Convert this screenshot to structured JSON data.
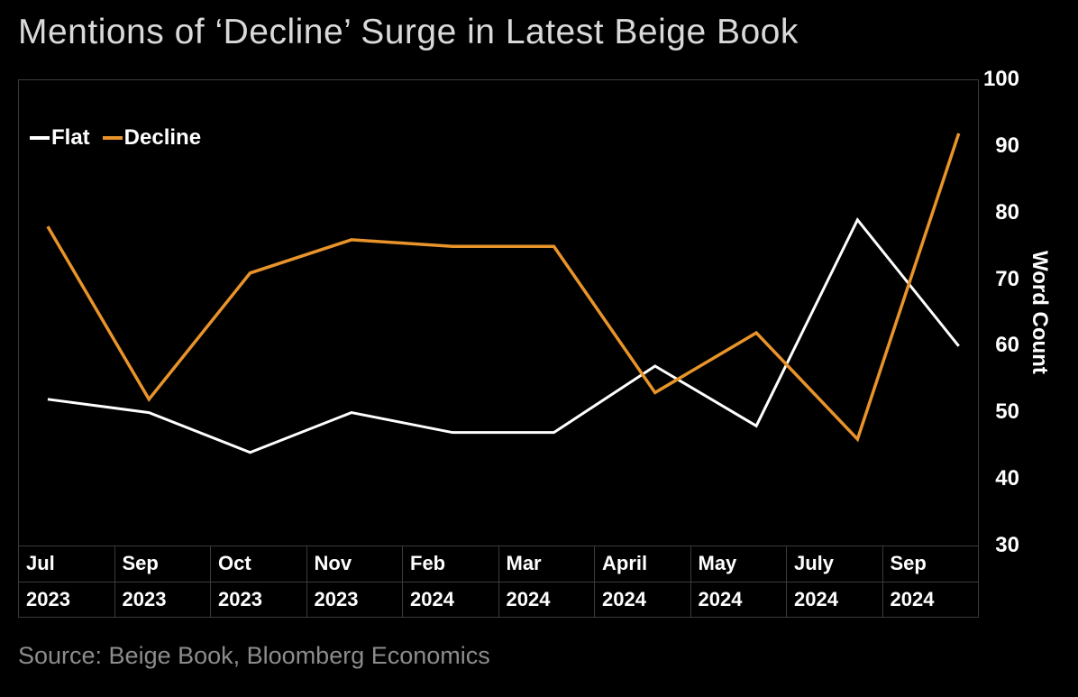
{
  "title": "Mentions of ‘Decline’ Surge in Latest Beige Book",
  "source": "Source: Beige Book, Bloomberg Economics",
  "chart": {
    "type": "line",
    "background_color": "#000000",
    "grid_color": "#3b3b3b",
    "text_color": "#ffffff",
    "title_fontsize": 39,
    "label_fontsize": 24,
    "tick_fontsize": 24,
    "ylabel": "Word Count",
    "ylim": [
      30,
      100
    ],
    "ytick_step": 10,
    "yticks": [
      30,
      40,
      50,
      60,
      70,
      80,
      90,
      100
    ],
    "x_categories": [
      {
        "month": "Jul",
        "year": "2023"
      },
      {
        "month": "Sep",
        "year": "2023"
      },
      {
        "month": "Oct",
        "year": "2023"
      },
      {
        "month": "Nov",
        "year": "2023"
      },
      {
        "month": "Feb",
        "year": "2024"
      },
      {
        "month": "Mar",
        "year": "2024"
      },
      {
        "month": "April",
        "year": "2024"
      },
      {
        "month": "May",
        "year": "2024"
      },
      {
        "month": "July",
        "year": "2024"
      },
      {
        "month": "Sep",
        "year": "2024"
      }
    ],
    "series": [
      {
        "name": "Flat",
        "color": "#ffffff",
        "line_width": 3,
        "values": [
          52,
          50,
          44,
          50,
          47,
          47,
          57,
          48,
          79,
          60
        ]
      },
      {
        "name": "Decline",
        "color": "#e8942a",
        "line_width": 3.5,
        "values": [
          78,
          52,
          71,
          76,
          75,
          75,
          53,
          62,
          46,
          92
        ]
      }
    ],
    "legend": {
      "position": "top-left",
      "items": [
        "Flat",
        "Decline"
      ]
    }
  }
}
